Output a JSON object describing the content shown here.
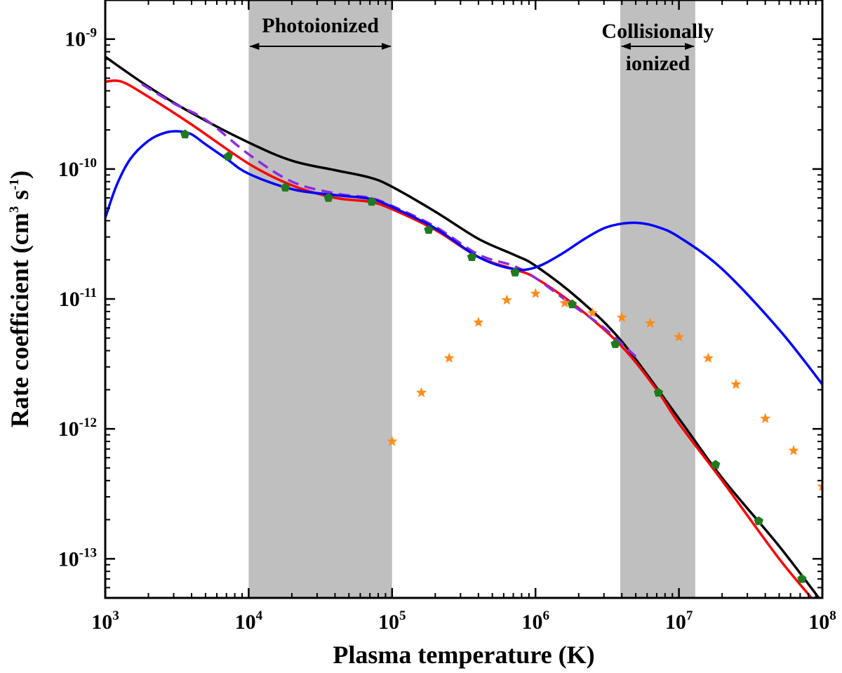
{
  "chart_data": {
    "type": "line",
    "title": "",
    "xlabel": "Plasma temperature (K)",
    "ylabel": "Rate coefficient (cm",
    "ylabel_sup1": "3",
    "ylabel_mid": " s",
    "ylabel_sup2": "-1",
    "ylabel_end": ")",
    "xscale": "log",
    "yscale": "log",
    "xlim": [
      1000,
      100000000
    ],
    "ylim": [
      5e-14,
      2e-09
    ],
    "x_ticks": [
      {
        "base": "10",
        "exp": "3",
        "value": 1000
      },
      {
        "base": "10",
        "exp": "4",
        "value": 10000
      },
      {
        "base": "10",
        "exp": "5",
        "value": 100000
      },
      {
        "base": "10",
        "exp": "6",
        "value": 1000000
      },
      {
        "base": "10",
        "exp": "7",
        "value": 10000000
      },
      {
        "base": "10",
        "exp": "8",
        "value": 100000000
      }
    ],
    "y_ticks": [
      {
        "base": "10",
        "exp": "-13",
        "value": 1e-13
      },
      {
        "base": "10",
        "exp": "-12",
        "value": 1e-12
      },
      {
        "base": "10",
        "exp": "-11",
        "value": 1e-11
      },
      {
        "base": "10",
        "exp": "-10",
        "value": 1e-10
      },
      {
        "base": "10",
        "exp": "-9",
        "value": 1e-09
      }
    ],
    "regions": [
      {
        "label": "Photoionized",
        "x_range": [
          10000,
          100000
        ]
      },
      {
        "label_lines": [
          "Collisionally",
          "ionized"
        ],
        "x_range": [
          3900000,
          13000000
        ]
      }
    ],
    "series": [
      {
        "name": "black",
        "color": "#000000",
        "style": "solid",
        "x": [
          1000,
          2000,
          4000,
          10000,
          20000,
          40000,
          70000,
          100000,
          200000,
          400000,
          700000,
          1000000,
          2000000,
          4000000,
          10000000,
          20000000,
          50000000,
          100000000
        ],
        "y": [
          7.3e-10,
          4.3e-10,
          2.7e-10,
          1.6e-10,
          1.16e-10,
          9.8e-11,
          8.6e-11,
          7.3e-11,
          4.7e-11,
          2.9e-11,
          2.2e-11,
          1.8e-11,
          1e-11,
          4.7e-12,
          1.2e-12,
          4.2e-13,
          1.25e-13,
          4.6e-14
        ]
      },
      {
        "name": "red",
        "color": "#ff0000",
        "style": "solid",
        "x": [
          1000,
          1300,
          2000,
          4000,
          10000,
          20000,
          40000,
          70000,
          100000,
          200000,
          400000,
          700000,
          1000000,
          2000000,
          4000000,
          7000000,
          10000000,
          20000000,
          50000000,
          100000000
        ],
        "y": [
          4.7e-10,
          4.7e-10,
          3.6e-10,
          2.2e-10,
          1.1e-10,
          7.5e-11,
          6e-11,
          5.6e-11,
          4.9e-11,
          3.4e-11,
          2.1e-11,
          1.7e-11,
          1.45e-11,
          8.5e-12,
          4.3e-12,
          2e-12,
          1.1e-12,
          4e-13,
          1e-13,
          4e-14
        ]
      },
      {
        "name": "purple-dashed",
        "color": "#8b2be2",
        "style": "dashed",
        "x": [
          1800,
          3000,
          5000,
          10000,
          20000,
          40000,
          70000,
          100000,
          200000,
          400000,
          700000,
          1000000,
          1800000,
          3000000,
          5000000
        ],
        "y": [
          4.5e-10,
          3.2e-10,
          2.4e-10,
          1.3e-10,
          8e-11,
          6.5e-11,
          6e-11,
          5.2e-11,
          3.6e-11,
          2.2e-11,
          1.8e-11,
          1.45e-11,
          9e-12,
          6e-12,
          3.6e-12
        ]
      },
      {
        "name": "blue",
        "color": "#0000ff",
        "style": "solid",
        "x": [
          1000,
          1200,
          1500,
          2000,
          2600,
          3300,
          4000,
          5000,
          7000,
          10000,
          20000,
          40000,
          70000,
          100000,
          200000,
          400000,
          700000,
          1000000,
          1500000,
          2200000,
          3000000,
          4000000,
          5200000,
          7000000,
          10000000,
          20000000,
          50000000,
          100000000
        ],
        "y": [
          4.2e-11,
          7.5e-11,
          1.2e-10,
          1.65e-10,
          1.9e-10,
          1.95e-10,
          1.85e-10,
          1.55e-10,
          1.2e-10,
          9.2e-11,
          7e-11,
          6.3e-11,
          5.9e-11,
          5.1e-11,
          3.5e-11,
          2.1e-11,
          1.7e-11,
          1.75e-11,
          2.2e-11,
          2.9e-11,
          3.5e-11,
          3.8e-11,
          3.85e-11,
          3.6e-11,
          3e-11,
          1.7e-11,
          5.8e-12,
          2.2e-12
        ]
      },
      {
        "name": "green-pentagons",
        "color": "#1e7a1e",
        "style": "markers",
        "marker": "pentagon",
        "x": [
          3600,
          7200,
          18000,
          36000,
          72000,
          180000,
          360000,
          720000,
          1800000,
          3600000,
          7200000,
          18000000,
          36000000,
          72000000
        ],
        "y": [
          1.85e-10,
          1.25e-10,
          7.2e-11,
          6e-11,
          5.6e-11,
          3.4e-11,
          2.1e-11,
          1.6e-11,
          9.1e-12,
          4.5e-12,
          1.9e-12,
          5.3e-13,
          1.95e-13,
          7e-14
        ]
      },
      {
        "name": "orange-stars",
        "color": "#ff8c1a",
        "style": "markers",
        "marker": "star",
        "x": [
          100000,
          160000,
          250000,
          400000,
          630000,
          1000000,
          1600000,
          2500000,
          4000000,
          6300000,
          10000000,
          16000000,
          25000000,
          40000000,
          63000000,
          100000000
        ],
        "y": [
          8e-13,
          1.9e-12,
          3.5e-12,
          6.6e-12,
          9.8e-12,
          1.1e-11,
          9.3e-12,
          7.8e-12,
          7.2e-12,
          6.5e-12,
          5.1e-12,
          3.5e-12,
          2.2e-12,
          1.2e-12,
          6.8e-13,
          3.6e-13
        ]
      }
    ]
  }
}
